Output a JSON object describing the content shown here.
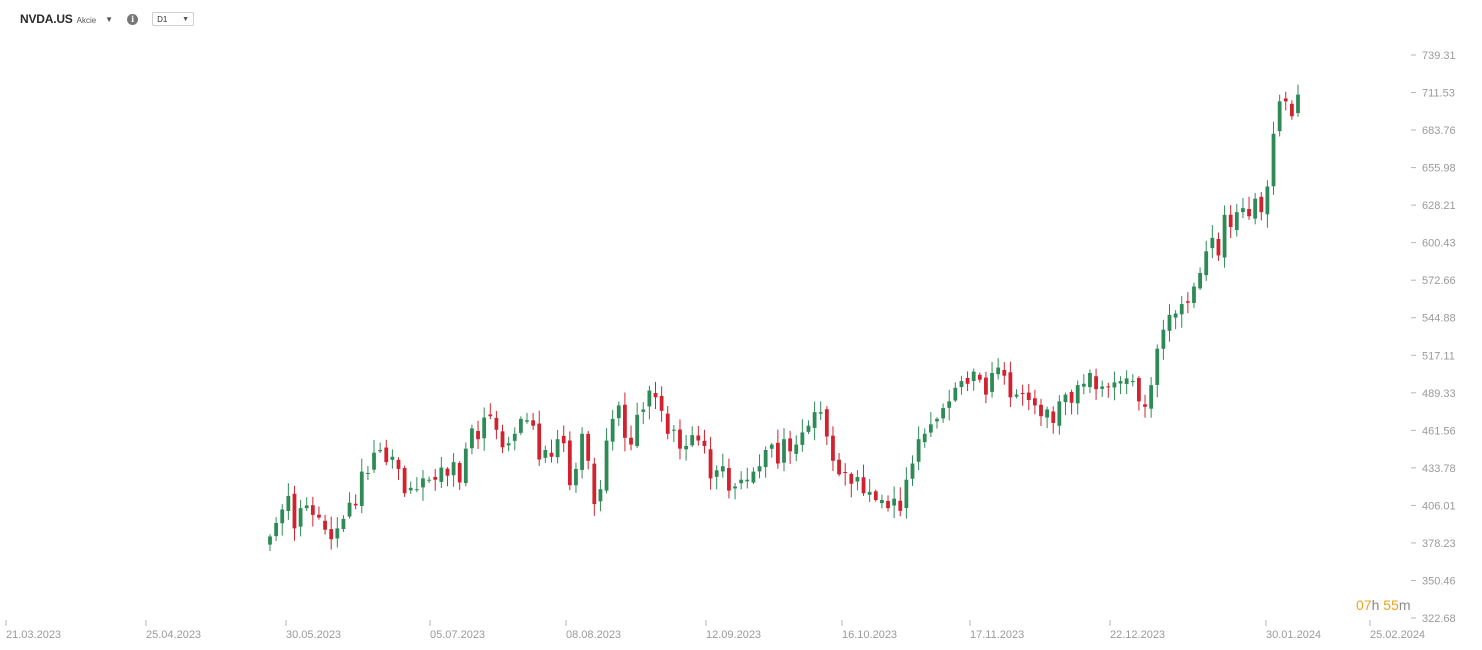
{
  "header": {
    "symbol": "NVDA.US",
    "symbol_type": "Akcie",
    "symbol_dropdown_icon": "caret-down-icon",
    "info_icon": "info-icon",
    "timeframe": "D1"
  },
  "countdown": {
    "hours": "07",
    "h_label": "h",
    "minutes": "55",
    "m_label": "m"
  },
  "colors": {
    "up": "#2e8b57",
    "down": "#d0222f",
    "axis_text": "#9a9a9a",
    "countdown": "#f0a020"
  },
  "chart_data": {
    "type": "candlestick",
    "price_axis_labels": [
      "739.31",
      "711.53",
      "683.76",
      "655.98",
      "628.21",
      "600.43",
      "572.66",
      "544.88",
      "517.11",
      "489.33",
      "461.56",
      "433.78",
      "406.01",
      "378.23",
      "350.46",
      "322.68"
    ],
    "ylim": [
      322.68,
      739.31
    ],
    "date_axis_labels": [
      "21.03.2023",
      "25.04.2023",
      "30.05.2023",
      "05.07.2023",
      "08.08.2023",
      "12.09.2023",
      "16.10.2023",
      "17.11.2023",
      "22.12.2023",
      "30.01.2024",
      "25.02.2024"
    ],
    "x_start_date": "2023-03-21",
    "x_end_date": "2024-02-25",
    "first_candle_date": "2023-05-26",
    "last_candle_date": "2024-02-07",
    "closes": [
      383,
      393,
      403,
      413,
      389,
      404,
      406,
      399,
      397,
      388,
      381,
      389,
      396,
      408,
      406,
      431,
      430,
      445,
      447,
      438,
      442,
      433,
      415,
      419,
      418,
      426,
      425,
      425,
      434,
      428,
      438,
      423,
      448,
      463,
      455,
      471,
      472,
      462,
      449,
      452,
      459,
      470,
      469,
      465,
      440,
      447,
      442,
      455,
      452,
      421,
      433,
      459,
      439,
      407,
      418,
      454,
      470,
      480,
      456,
      451,
      473,
      477,
      491,
      486,
      476,
      459,
      462,
      448,
      450,
      458,
      454,
      450,
      426,
      432,
      435,
      417,
      420,
      425,
      425,
      431,
      435,
      447,
      451,
      437,
      455,
      446,
      451,
      460,
      465,
      475,
      475,
      457,
      439,
      429,
      430,
      422,
      427,
      415,
      416,
      410,
      410,
      404,
      411,
      402,
      425,
      437,
      455,
      459,
      466,
      470,
      478,
      483,
      493,
      498,
      496,
      505,
      499,
      488,
      504,
      508,
      502,
      486,
      488,
      489,
      484,
      480,
      472,
      477,
      467,
      483,
      488,
      482,
      495,
      496,
      504,
      492,
      494,
      494,
      497,
      498,
      500,
      498,
      483,
      479,
      495,
      522,
      536,
      547,
      548,
      555,
      556,
      568,
      578,
      594,
      604,
      591,
      621,
      612,
      623,
      626,
      620,
      633,
      623,
      642,
      681,
      705,
      705,
      694,
      710
    ]
  }
}
